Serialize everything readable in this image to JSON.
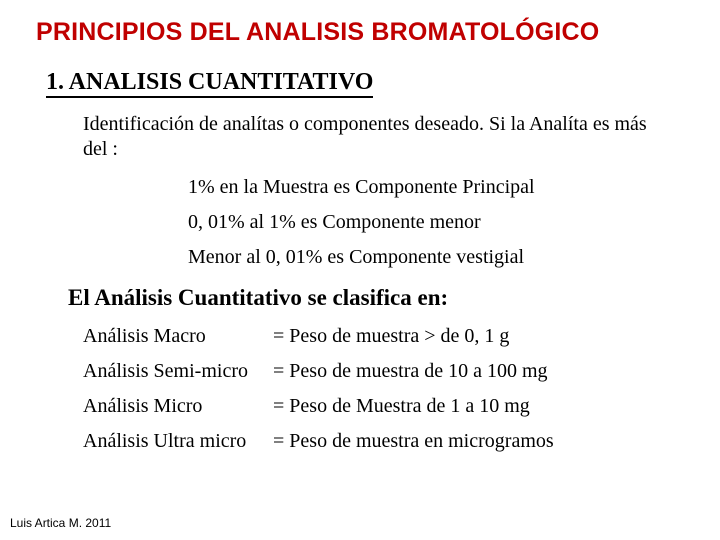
{
  "title": "PRINCIPIOS DEL ANALISIS BROMATOLÓGICO",
  "heading": "1.  ANALISIS CUANTITATIVO",
  "intro": "Identificación de analítas o componentes deseado. Si la Analíta es más del :",
  "thresholds": [
    "1% en la Muestra  es Componente Principal",
    "0, 01% al 1%  es Componente menor",
    "Menor al 0, 01% es Componente vestigial"
  ],
  "subheading": "El Análisis Cuantitativo se clasifica en:",
  "classes": [
    {
      "label": "Análisis Macro",
      "eq": "= Peso de muestra > de 0, 1 g"
    },
    {
      "label": "Análisis Semi-micro",
      "eq": "= Peso de muestra de 10 a 100 mg"
    },
    {
      "label": "Análisis Micro",
      "eq": "= Peso de Muestra de 1 a 10 mg"
    },
    {
      "label": "Análisis Ultra micro",
      "eq": "= Peso de muestra en microgramos"
    }
  ],
  "footer": "Luis Artica M. 2011",
  "colors": {
    "title": "#c00000",
    "text": "#000000",
    "background": "#ffffff"
  }
}
